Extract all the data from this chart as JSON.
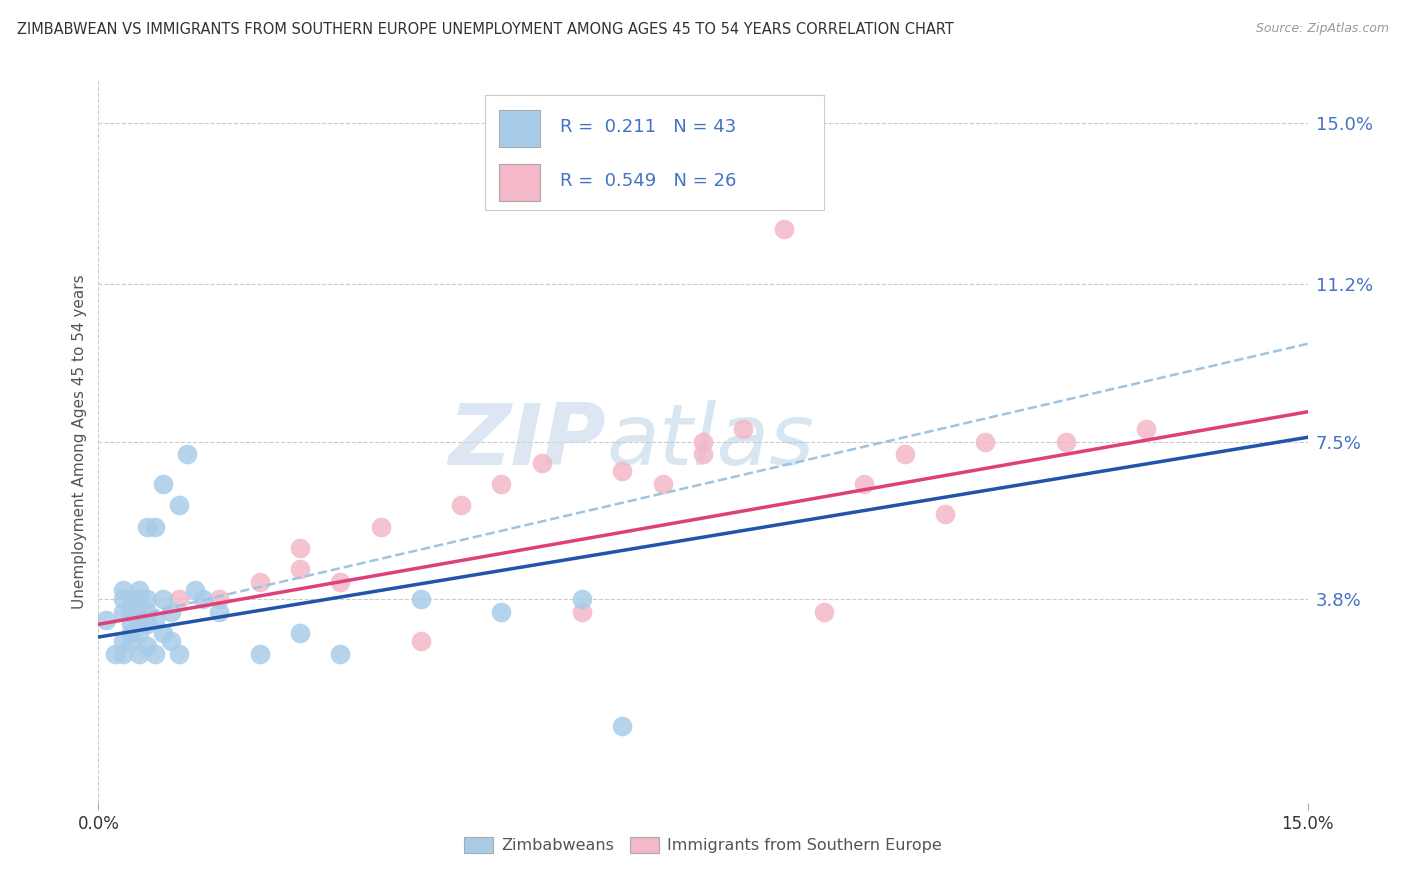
{
  "title": "ZIMBABWEAN VS IMMIGRANTS FROM SOUTHERN EUROPE UNEMPLOYMENT AMONG AGES 45 TO 54 YEARS CORRELATION CHART",
  "source": "Source: ZipAtlas.com",
  "ylabel": "Unemployment Among Ages 45 to 54 years",
  "xlim": [
    0.0,
    0.15
  ],
  "ylim": [
    -0.01,
    0.16
  ],
  "yticks": [
    0.038,
    0.075,
    0.112,
    0.15
  ],
  "ytick_labels": [
    "3.8%",
    "7.5%",
    "11.2%",
    "15.0%"
  ],
  "xticks": [
    0.0,
    0.15
  ],
  "xtick_labels": [
    "0.0%",
    "15.0%"
  ],
  "legend1_R": "0.211",
  "legend1_N": "43",
  "legend2_R": "0.549",
  "legend2_N": "26",
  "blue_color": "#a8cce8",
  "pink_color": "#f4b8c8",
  "blue_line_color": "#2255aa",
  "pink_line_color": "#e0407a",
  "dashed_line_color": "#a0c4e0",
  "watermark_zip": "ZIP",
  "watermark_atlas": "atlas",
  "background_color": "#ffffff",
  "grid_color": "#cccccc",
  "blue_scatter_x": [
    0.001,
    0.002,
    0.003,
    0.003,
    0.003,
    0.003,
    0.003,
    0.004,
    0.004,
    0.004,
    0.004,
    0.004,
    0.005,
    0.005,
    0.005,
    0.005,
    0.005,
    0.006,
    0.006,
    0.006,
    0.006,
    0.006,
    0.007,
    0.007,
    0.007,
    0.008,
    0.008,
    0.008,
    0.009,
    0.009,
    0.01,
    0.01,
    0.011,
    0.012,
    0.013,
    0.015,
    0.02,
    0.025,
    0.03,
    0.04,
    0.05,
    0.06,
    0.065
  ],
  "blue_scatter_y": [
    0.033,
    0.025,
    0.025,
    0.028,
    0.035,
    0.038,
    0.04,
    0.028,
    0.03,
    0.032,
    0.035,
    0.038,
    0.025,
    0.03,
    0.033,
    0.038,
    0.04,
    0.027,
    0.032,
    0.035,
    0.038,
    0.055,
    0.025,
    0.033,
    0.055,
    0.03,
    0.038,
    0.065,
    0.028,
    0.035,
    0.025,
    0.06,
    0.072,
    0.04,
    0.038,
    0.035,
    0.025,
    0.03,
    0.025,
    0.038,
    0.035,
    0.038,
    0.008
  ],
  "pink_scatter_x": [
    0.005,
    0.01,
    0.015,
    0.02,
    0.025,
    0.025,
    0.03,
    0.035,
    0.04,
    0.045,
    0.05,
    0.055,
    0.06,
    0.065,
    0.07,
    0.075,
    0.075,
    0.08,
    0.085,
    0.09,
    0.095,
    0.1,
    0.105,
    0.11,
    0.12,
    0.13
  ],
  "pink_scatter_y": [
    0.035,
    0.038,
    0.038,
    0.042,
    0.045,
    0.05,
    0.042,
    0.055,
    0.028,
    0.06,
    0.065,
    0.07,
    0.035,
    0.068,
    0.065,
    0.072,
    0.075,
    0.078,
    0.125,
    0.035,
    0.065,
    0.072,
    0.058,
    0.075,
    0.075,
    0.078
  ],
  "blue_line_x0": 0.0,
  "blue_line_x1": 0.15,
  "blue_line_y0": 0.029,
  "blue_line_y1": 0.076,
  "pink_line_x0": 0.0,
  "pink_line_x1": 0.15,
  "pink_line_y0": 0.032,
  "pink_line_y1": 0.082,
  "dashed_line_x0": 0.0,
  "dashed_line_x1": 0.15,
  "dashed_line_y0": 0.032,
  "dashed_line_y1": 0.098
}
